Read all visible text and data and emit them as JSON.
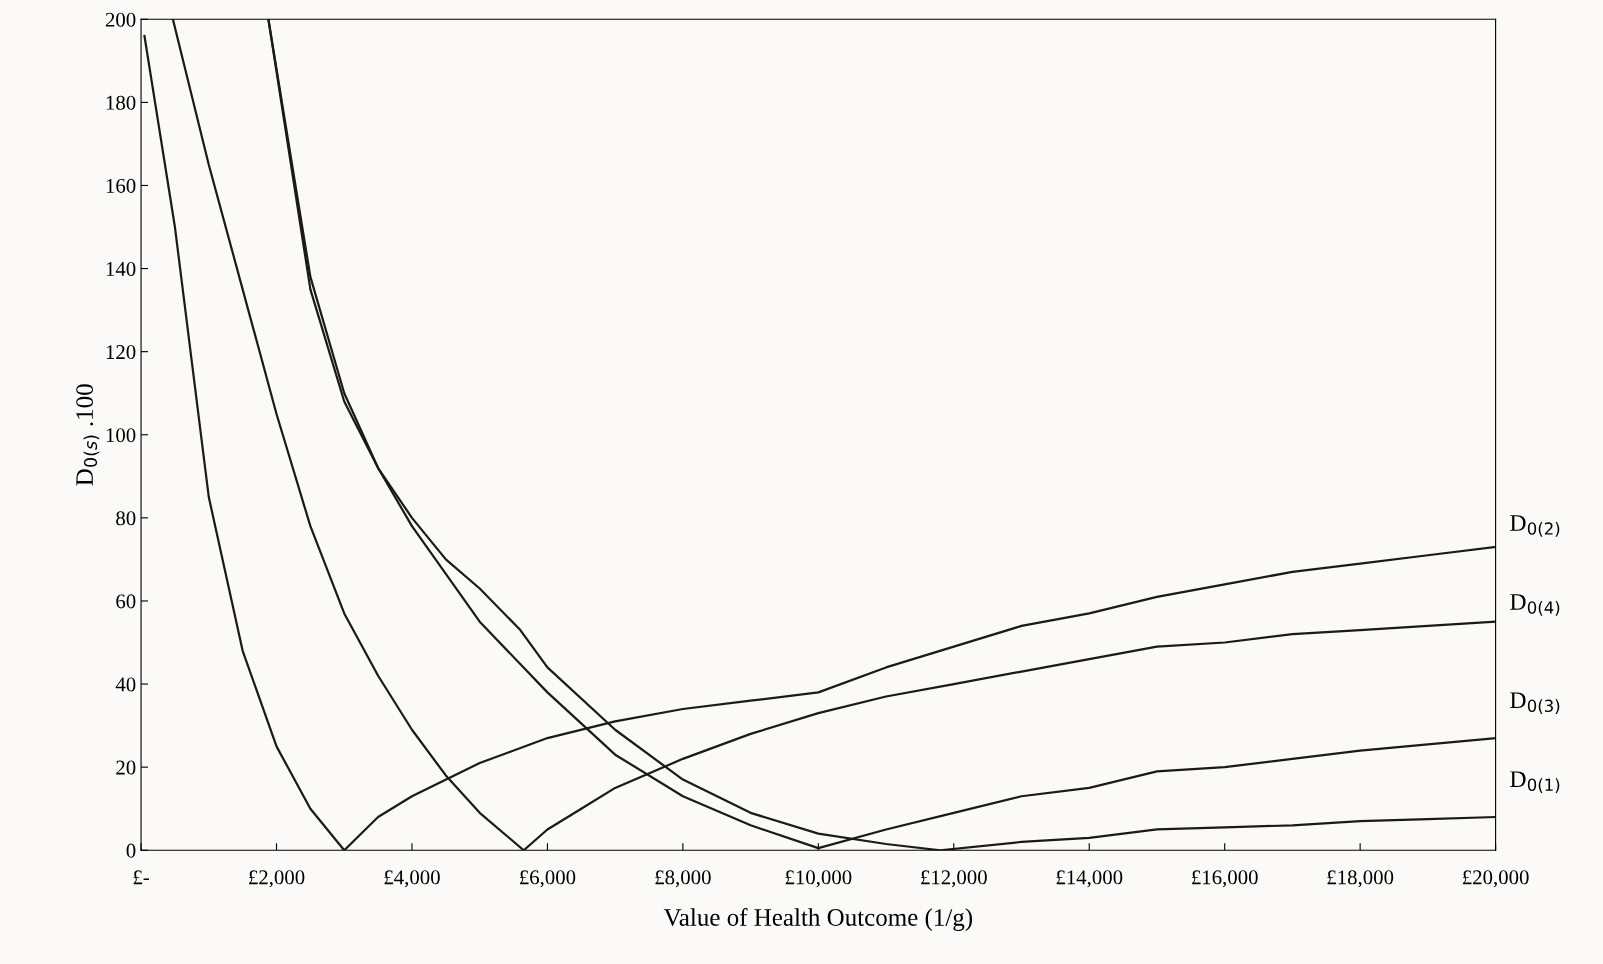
{
  "chart_data": {
    "type": "line",
    "xlabel": "Value of Health Outcome (1/g)",
    "ylabel": "D$_{0(s)}$ .100",
    "xlim": [
      0,
      20000
    ],
    "ylim": [
      0,
      200
    ],
    "xticks": [
      {
        "value": 0,
        "label": "£-"
      },
      {
        "value": 2000,
        "label": "£2,000"
      },
      {
        "value": 4000,
        "label": "£4,000"
      },
      {
        "value": 6000,
        "label": "£6,000"
      },
      {
        "value": 8000,
        "label": "£8,000"
      },
      {
        "value": 10000,
        "label": "£10,000"
      },
      {
        "value": 12000,
        "label": "£12,000"
      },
      {
        "value": 14000,
        "label": "£14,000"
      },
      {
        "value": 16000,
        "label": "£16,000"
      },
      {
        "value": 18000,
        "label": "£18,000"
      },
      {
        "value": 20000,
        "label": "£20,000"
      }
    ],
    "yticks": [
      0,
      20,
      40,
      60,
      80,
      100,
      120,
      140,
      160,
      180,
      200
    ],
    "grid": false,
    "legend": false,
    "marker": "none",
    "line_style": "solid",
    "series": [
      {
        "name": "D$_{0(2)}$",
        "color": "#1a1a1a",
        "x": [
          50,
          500,
          1000,
          1500,
          2000,
          2500,
          3000,
          3500,
          4000,
          5000,
          6000,
          7000,
          8000,
          9000,
          10000,
          11000,
          12000,
          13000,
          14000,
          15000,
          16000,
          17000,
          18000,
          19000,
          20000
        ],
        "values": [
          196,
          150,
          85,
          48,
          25,
          10,
          0,
          8,
          13,
          21,
          27,
          31,
          34,
          36,
          38,
          44,
          49,
          54,
          57,
          61,
          64,
          67,
          69,
          71,
          73
        ]
      },
      {
        "name": "D$_{0(4)}$",
        "color": "#1a1a1a",
        "x": [
          470,
          1000,
          1500,
          2000,
          2500,
          3000,
          3500,
          4000,
          4500,
          5000,
          5650,
          6000,
          6500,
          7000,
          8000,
          9000,
          10000,
          11000,
          12000,
          13000,
          14000,
          15000,
          16000,
          17000,
          18000,
          19000,
          20000
        ],
        "values": [
          200,
          165,
          135,
          105,
          78,
          57,
          42,
          29,
          18,
          9,
          0,
          5,
          10,
          15,
          22,
          28,
          33,
          37,
          40,
          43,
          46,
          49,
          50,
          52,
          53,
          54,
          55
        ]
      },
      {
        "name": "D$_{0(1)}$",
        "color": "#1a1a1a",
        "x": [
          1880,
          2500,
          3000,
          3500,
          4000,
          4500,
          5000,
          5600,
          6000,
          7000,
          8000,
          9000,
          10000,
          11000,
          11800,
          13000,
          14000,
          15000,
          16000,
          17000,
          18000,
          19000,
          20000
        ],
        "values": [
          200,
          135,
          108,
          92,
          80,
          70,
          63,
          53,
          44,
          29,
          17,
          9,
          4,
          1.5,
          0,
          2,
          3,
          5,
          5.5,
          6,
          7,
          7.5,
          8
        ]
      },
      {
        "name": "D$_{0(3)}$",
        "color": "#1a1a1a",
        "x": [
          1880,
          2500,
          3000,
          3500,
          4000,
          5000,
          6000,
          7000,
          8000,
          9000,
          10000,
          11000,
          12000,
          13000,
          14000,
          15000,
          16000,
          17000,
          18000,
          19000,
          20000
        ],
        "values": [
          200,
          138,
          110,
          92,
          78,
          55,
          38,
          23,
          13,
          6,
          0.5,
          5,
          9,
          13,
          15,
          19,
          20,
          22,
          24,
          25.5,
          27
        ]
      }
    ]
  }
}
